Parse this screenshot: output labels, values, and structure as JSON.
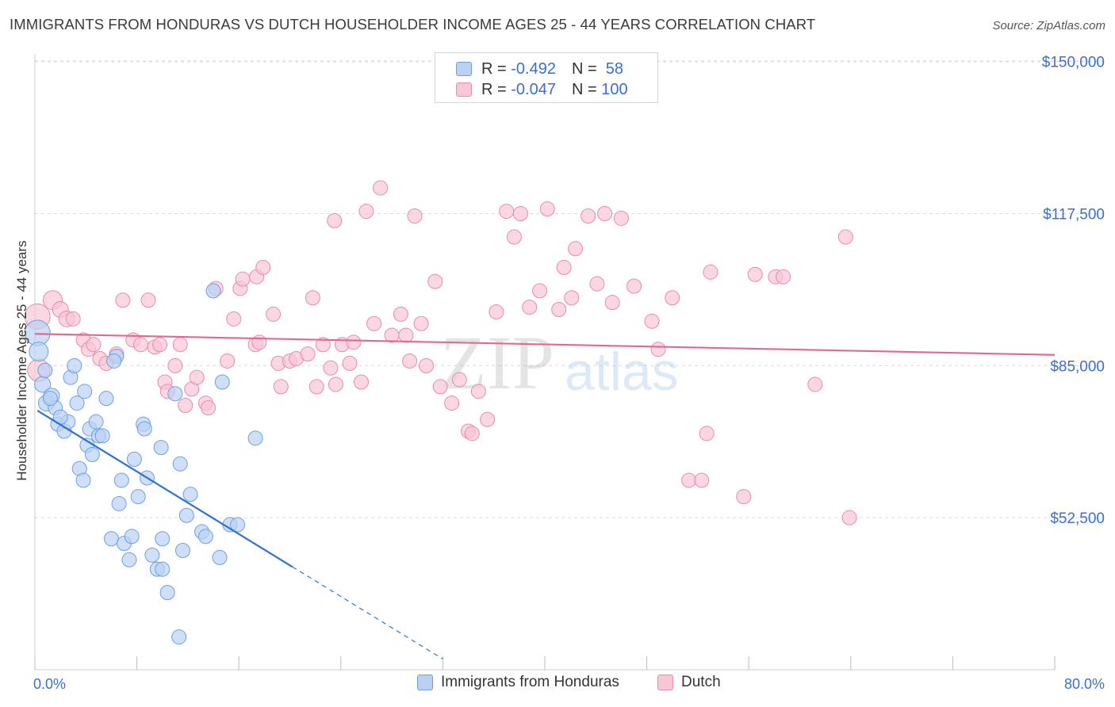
{
  "title": "IMMIGRANTS FROM HONDURAS VS DUTCH HOUSEHOLDER INCOME AGES 25 - 44 YEARS CORRELATION CHART",
  "source": "Source: ZipAtlas.com",
  "watermark": {
    "zip": "ZIP",
    "atlas": "atlas"
  },
  "legend_box": {
    "rows": [
      {
        "r_label": "R = ",
        "r_value": "-0.492",
        "n_label": "N = ",
        "n_value": " 58",
        "color": "#8fb4ee"
      },
      {
        "r_label": "R = ",
        "r_value": "-0.047",
        "n_label": "N = ",
        "n_value": "100",
        "color": "#f4a3bd"
      }
    ]
  },
  "colors": {
    "blue_fill": "#b9d1f3",
    "blue_stroke": "#6f9fe3",
    "blue_line": "#2f72d0",
    "pink_fill": "#f8c6d5",
    "pink_stroke": "#eb8aa9",
    "pink_line": "#e5688e",
    "axis_label": "#3a6ed6",
    "grid": "#dcdcdc"
  },
  "chart_data": {
    "type": "scatter",
    "title": "IMMIGRANTS FROM HONDURAS VS DUTCH HOUSEHOLDER INCOME AGES 25 - 44 YEARS CORRELATION CHART",
    "xlabel": "",
    "ylabel": "Householder Income Ages 25 - 44 years",
    "xlim": [
      0,
      80
    ],
    "ylim": [
      20000,
      153000
    ],
    "x_tick_labels": [
      "0.0%",
      "80.0%"
    ],
    "y_ticks": [
      52500,
      85000,
      117500,
      150000
    ],
    "y_tick_labels": [
      "$52,500",
      "$85,000",
      "$117,500",
      "$150,000"
    ],
    "grid": true,
    "legend_position": "bottom-center",
    "series": [
      {
        "name": "Immigrants from Honduras",
        "R": -0.492,
        "N": 58,
        "trend": {
          "x0": 0.2,
          "y0": 75400,
          "x1": 20.2,
          "y1": 42000,
          "dash_x_end": 32,
          "dash_y_end": 22300
        },
        "points": [
          [
            0.2,
            92000,
            16
          ],
          [
            0.3,
            88000,
            12
          ],
          [
            0.6,
            81000,
            10
          ],
          [
            0.9,
            77000,
            10
          ],
          [
            1.3,
            78500,
            10
          ],
          [
            1.6,
            76000,
            9
          ],
          [
            1.8,
            72500,
            9
          ],
          [
            2.3,
            71000,
            9
          ],
          [
            2.6,
            73000,
            9
          ],
          [
            2.8,
            82500,
            9
          ],
          [
            3.1,
            85000,
            9
          ],
          [
            3.3,
            77000,
            9
          ],
          [
            3.5,
            63000,
            9
          ],
          [
            3.8,
            60500,
            9
          ],
          [
            4.1,
            68000,
            9
          ],
          [
            4.3,
            71500,
            9
          ],
          [
            4.5,
            66000,
            9
          ],
          [
            4.8,
            73000,
            9
          ],
          [
            5.0,
            70000,
            9
          ],
          [
            5.3,
            70000,
            9
          ],
          [
            5.6,
            78000,
            9
          ],
          [
            6.0,
            48000,
            9
          ],
          [
            6.4,
            87000,
            9
          ],
          [
            6.6,
            55500,
            9
          ],
          [
            6.8,
            60500,
            9
          ],
          [
            7.0,
            47000,
            9
          ],
          [
            7.4,
            43500,
            9
          ],
          [
            7.6,
            48500,
            9
          ],
          [
            7.8,
            65000,
            9
          ],
          [
            8.1,
            57000,
            9
          ],
          [
            8.5,
            72500,
            9
          ],
          [
            8.6,
            71500,
            9
          ],
          [
            8.8,
            61000,
            9
          ],
          [
            9.2,
            44500,
            9
          ],
          [
            9.6,
            41500,
            9
          ],
          [
            10.0,
            41500,
            9
          ],
          [
            10.0,
            48000,
            9
          ],
          [
            10.4,
            36500,
            9
          ],
          [
            11.0,
            79000,
            9
          ],
          [
            11.3,
            27000,
            9
          ],
          [
            11.4,
            64000,
            9
          ],
          [
            11.6,
            45500,
            9
          ],
          [
            11.9,
            53000,
            9
          ],
          [
            12.2,
            57500,
            9
          ],
          [
            13.1,
            49500,
            9
          ],
          [
            13.4,
            48500,
            9
          ],
          [
            14.0,
            101000,
            9
          ],
          [
            14.5,
            44000,
            9
          ],
          [
            14.7,
            81500,
            9
          ],
          [
            15.3,
            51000,
            9
          ],
          [
            15.9,
            51000,
            9
          ],
          [
            17.3,
            69500,
            9
          ],
          [
            1.2,
            78000,
            9
          ],
          [
            0.8,
            84000,
            9
          ],
          [
            3.9,
            79500,
            9
          ],
          [
            6.2,
            86000,
            9
          ],
          [
            2.0,
            74000,
            9
          ],
          [
            9.9,
            67500,
            9
          ]
        ]
      },
      {
        "name": "Dutch",
        "R": -0.047,
        "N": 100,
        "trend": {
          "x0": 0,
          "y0": 91800,
          "x1": 80,
          "y1": 87300
        },
        "points": [
          [
            0.2,
            95500,
            16
          ],
          [
            0.3,
            84000,
            14
          ],
          [
            1.4,
            99000,
            12
          ],
          [
            2.0,
            97000,
            10
          ],
          [
            2.5,
            95000,
            10
          ],
          [
            3.0,
            95000,
            9
          ],
          [
            3.8,
            90500,
            9
          ],
          [
            4.2,
            88500,
            9
          ],
          [
            4.6,
            89500,
            9
          ],
          [
            5.1,
            86500,
            9
          ],
          [
            5.6,
            85500,
            9
          ],
          [
            6.4,
            87500,
            9
          ],
          [
            6.9,
            99000,
            9
          ],
          [
            7.7,
            90500,
            9
          ],
          [
            8.3,
            89500,
            9
          ],
          [
            8.9,
            99000,
            9
          ],
          [
            9.4,
            89000,
            9
          ],
          [
            9.8,
            89500,
            9
          ],
          [
            10.2,
            81500,
            9
          ],
          [
            10.4,
            79500,
            9
          ],
          [
            11.0,
            85000,
            9
          ],
          [
            11.4,
            89500,
            9
          ],
          [
            11.8,
            76500,
            9
          ],
          [
            12.3,
            80000,
            9
          ],
          [
            12.7,
            82500,
            9
          ],
          [
            13.4,
            77000,
            9
          ],
          [
            13.6,
            76000,
            9
          ],
          [
            14.2,
            101500,
            9
          ],
          [
            15.1,
            86000,
            9
          ],
          [
            15.6,
            95000,
            9
          ],
          [
            16.1,
            101500,
            9
          ],
          [
            16.3,
            103500,
            9
          ],
          [
            17.3,
            89500,
            9
          ],
          [
            17.4,
            104000,
            9
          ],
          [
            17.6,
            90000,
            9
          ],
          [
            17.9,
            106000,
            9
          ],
          [
            18.7,
            96000,
            9
          ],
          [
            19.1,
            85500,
            9
          ],
          [
            19.3,
            80500,
            9
          ],
          [
            20.0,
            86000,
            9
          ],
          [
            20.5,
            86500,
            9
          ],
          [
            21.4,
            87500,
            9
          ],
          [
            22.1,
            80500,
            9
          ],
          [
            22.6,
            89500,
            9
          ],
          [
            23.2,
            84500,
            9
          ],
          [
            23.5,
            116000,
            9
          ],
          [
            23.6,
            81000,
            9
          ],
          [
            24.1,
            89500,
            9
          ],
          [
            24.7,
            85500,
            9
          ],
          [
            25.0,
            90000,
            9
          ],
          [
            25.6,
            81500,
            9
          ],
          [
            26.0,
            118000,
            9
          ],
          [
            26.6,
            94000,
            9
          ],
          [
            27.1,
            123000,
            9
          ],
          [
            28.0,
            91500,
            9
          ],
          [
            28.7,
            96000,
            9
          ],
          [
            29.1,
            91500,
            9
          ],
          [
            29.4,
            86000,
            9
          ],
          [
            29.8,
            117000,
            9
          ],
          [
            30.3,
            94000,
            9
          ],
          [
            30.7,
            85000,
            9
          ],
          [
            31.4,
            103000,
            9
          ],
          [
            31.8,
            80500,
            9
          ],
          [
            32.7,
            77000,
            9
          ],
          [
            33.3,
            82000,
            9
          ],
          [
            34.0,
            71000,
            9
          ],
          [
            34.3,
            70500,
            9
          ],
          [
            34.8,
            79500,
            9
          ],
          [
            35.5,
            73500,
            9
          ],
          [
            36.2,
            96500,
            9
          ],
          [
            37.0,
            118000,
            9
          ],
          [
            37.6,
            112500,
            9
          ],
          [
            38.1,
            117500,
            9
          ],
          [
            38.8,
            97500,
            9
          ],
          [
            39.6,
            101000,
            9
          ],
          [
            40.2,
            118500,
            9
          ],
          [
            41.1,
            97000,
            9
          ],
          [
            41.5,
            106000,
            9
          ],
          [
            42.1,
            99500,
            9
          ],
          [
            42.4,
            110000,
            9
          ],
          [
            43.4,
            117000,
            9
          ],
          [
            44.1,
            102500,
            9
          ],
          [
            44.7,
            117500,
            9
          ],
          [
            45.3,
            98500,
            9
          ],
          [
            46.0,
            116500,
            9
          ],
          [
            47.0,
            102000,
            9
          ],
          [
            48.4,
            94500,
            9
          ],
          [
            48.9,
            88500,
            9
          ],
          [
            50.0,
            99500,
            9
          ],
          [
            51.3,
            60500,
            9
          ],
          [
            52.3,
            60500,
            9
          ],
          [
            52.7,
            70500,
            9
          ],
          [
            53.0,
            105000,
            9
          ],
          [
            55.6,
            57000,
            9
          ],
          [
            56.5,
            104500,
            9
          ],
          [
            58.1,
            104000,
            9
          ],
          [
            58.7,
            104000,
            9
          ],
          [
            61.2,
            81000,
            9
          ],
          [
            63.6,
            112500,
            9
          ],
          [
            63.9,
            52500,
            9
          ],
          [
            21.8,
            99500,
            9
          ]
        ]
      }
    ]
  },
  "axis": {
    "x_left_label": "0.0%",
    "x_right_label": "80.0%"
  },
  "bottom_legend": {
    "item1": "Immigrants from Honduras",
    "item2": "Dutch"
  }
}
